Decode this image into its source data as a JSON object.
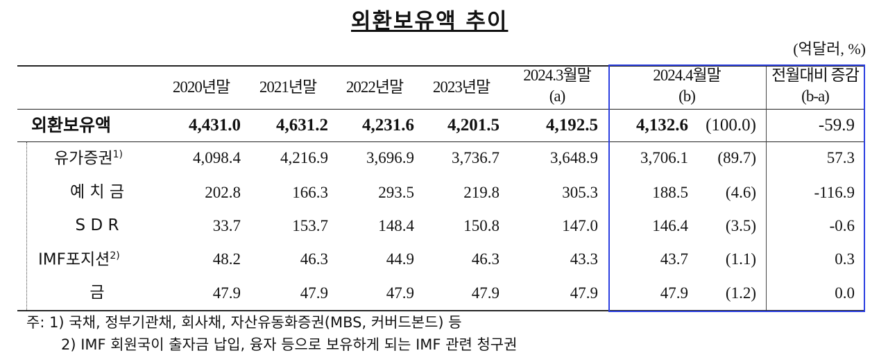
{
  "title": "외환보유액 추이",
  "unit": "(억달러, %)",
  "table": {
    "header": [
      [
        "2020년말"
      ],
      [
        "2021년말"
      ],
      [
        "2022년말"
      ],
      [
        "2023년말"
      ],
      [
        "2024.3월말",
        "(a)"
      ],
      [
        "2024.4월말",
        "(b)"
      ],
      [
        "전월대비 증감",
        "(b-a)"
      ]
    ],
    "rows": [
      {
        "label": "외환보유액",
        "cells": [
          "4,431.0",
          "4,631.2",
          "4,231.6",
          "4,201.5",
          "4,192.5",
          "4,132.6",
          "(100.0)",
          "-59.9"
        ]
      },
      {
        "label": "유가증권",
        "sup": "1)",
        "cells": [
          "4,098.4",
          "4,216.9",
          "3,696.9",
          "3,736.7",
          "3,648.9",
          "3,706.1",
          "(89.7)",
          "57.3"
        ]
      },
      {
        "label": "예 치 금",
        "cells": [
          "202.8",
          "166.3",
          "293.5",
          "219.8",
          "305.3",
          "188.5",
          "(4.6)",
          "-116.9"
        ]
      },
      {
        "label": "S D R",
        "cells": [
          "33.7",
          "153.7",
          "148.4",
          "150.8",
          "147.0",
          "146.4",
          "(3.5)",
          "-0.6"
        ]
      },
      {
        "label": "IMF포지션",
        "sup": "2)",
        "cells": [
          "48.2",
          "46.3",
          "44.9",
          "46.3",
          "43.3",
          "43.7",
          "(1.1)",
          "0.3"
        ]
      },
      {
        "label": "금",
        "cells": [
          "47.9",
          "47.9",
          "47.9",
          "47.9",
          "47.9",
          "47.9",
          "(1.2)",
          "0.0"
        ]
      }
    ]
  },
  "notes": [
    "주: 1) 국채, 정부기관채, 회사채, 자산유동화증권(MBS, 커버드본드) 등",
    "2) IMF 회원국이 출자금 납입, 융자 등으로 보유하게 되는 IMF 관련 청구권"
  ]
}
